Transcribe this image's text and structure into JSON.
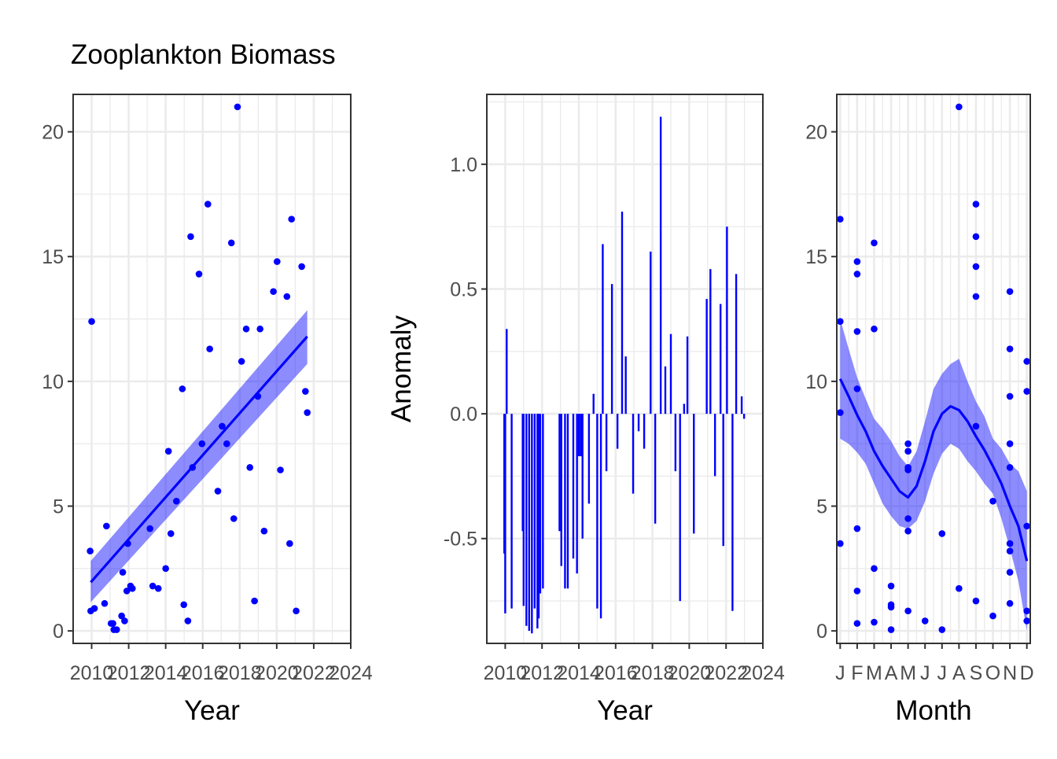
{
  "title": "Zooplankton Biomass",
  "colors": {
    "accent": "#0000ff",
    "ribbon": "#0000ff",
    "grid": "#ebebeb",
    "panel_border": "#333333"
  },
  "chart_data": [
    {
      "type": "scatter",
      "xlabel": "Year",
      "ylabel": "",
      "xlim": [
        2009.0,
        2024.0
      ],
      "ylim": [
        -0.5,
        21.5
      ],
      "xticks": [
        2010,
        2012,
        2014,
        2016,
        2018,
        2020,
        2022,
        2024
      ],
      "yticks": [
        0,
        5,
        10,
        15,
        20
      ],
      "grid": true,
      "points": [
        [
          2009.92,
          3.2
        ],
        [
          2009.95,
          0.8
        ],
        [
          2010.0,
          12.4
        ],
        [
          2010.15,
          0.9
        ],
        [
          2010.7,
          1.1
        ],
        [
          2010.8,
          4.2
        ],
        [
          2011.05,
          0.3
        ],
        [
          2011.15,
          0.3
        ],
        [
          2011.2,
          0.05
        ],
        [
          2011.35,
          0.05
        ],
        [
          2011.62,
          0.6
        ],
        [
          2011.68,
          2.35
        ],
        [
          2011.78,
          0.4
        ],
        [
          2011.9,
          1.6
        ],
        [
          2011.95,
          3.5
        ],
        [
          2012.1,
          1.8
        ],
        [
          2012.2,
          1.7
        ],
        [
          2013.15,
          4.1
        ],
        [
          2013.3,
          1.8
        ],
        [
          2013.6,
          1.7
        ],
        [
          2014.0,
          2.5
        ],
        [
          2014.15,
          7.2
        ],
        [
          2014.28,
          3.9
        ],
        [
          2014.58,
          5.2
        ],
        [
          2014.9,
          9.7
        ],
        [
          2014.98,
          1.05
        ],
        [
          2015.2,
          0.4
        ],
        [
          2015.35,
          15.8
        ],
        [
          2015.45,
          6.55
        ],
        [
          2015.8,
          14.3
        ],
        [
          2015.96,
          7.5
        ],
        [
          2016.28,
          17.1
        ],
        [
          2016.38,
          11.3
        ],
        [
          2016.82,
          5.6
        ],
        [
          2017.05,
          8.2
        ],
        [
          2017.3,
          7.5
        ],
        [
          2017.55,
          15.55
        ],
        [
          2017.68,
          4.5
        ],
        [
          2017.88,
          21.0
        ],
        [
          2018.1,
          10.8
        ],
        [
          2018.35,
          12.1
        ],
        [
          2018.55,
          6.55
        ],
        [
          2018.8,
          1.2
        ],
        [
          2018.98,
          9.4
        ],
        [
          2019.1,
          12.1
        ],
        [
          2019.32,
          4.0
        ],
        [
          2019.82,
          13.6
        ],
        [
          2020.02,
          14.8
        ],
        [
          2020.2,
          6.45
        ],
        [
          2020.55,
          13.4
        ],
        [
          2020.7,
          3.5
        ],
        [
          2020.8,
          16.5
        ],
        [
          2021.05,
          0.8
        ],
        [
          2021.35,
          14.6
        ],
        [
          2021.55,
          9.6
        ],
        [
          2021.65,
          8.75
        ]
      ],
      "trend": {
        "method": "lm",
        "x": [
          2009.95,
          2021.65
        ],
        "y": [
          1.95,
          11.8
        ],
        "ci_lower": [
          1.15,
          10.7
        ],
        "ci_upper": [
          2.8,
          12.85
        ]
      }
    },
    {
      "type": "bar",
      "xlabel": "Year",
      "ylabel": "Anomaly",
      "xlim": [
        2009.0,
        2024.0
      ],
      "ylim": [
        -0.92,
        1.28
      ],
      "xticks": [
        2010,
        2012,
        2014,
        2016,
        2018,
        2020,
        2022,
        2024
      ],
      "yticks": [
        -0.5,
        0.0,
        0.5,
        1.0
      ],
      "grid": true,
      "bars": [
        [
          2009.95,
          -0.56
        ],
        [
          2010.0,
          -0.8
        ],
        [
          2010.08,
          0.34
        ],
        [
          2010.35,
          -0.78
        ],
        [
          2010.95,
          -0.47
        ],
        [
          2011.0,
          -0.77
        ],
        [
          2011.15,
          -0.85
        ],
        [
          2011.3,
          -0.87
        ],
        [
          2011.45,
          -0.88
        ],
        [
          2011.6,
          -0.78
        ],
        [
          2011.75,
          -0.86
        ],
        [
          2011.82,
          -0.82
        ],
        [
          2011.9,
          -0.72
        ],
        [
          2012.05,
          -0.7
        ],
        [
          2012.95,
          -0.47
        ],
        [
          2013.05,
          -0.61
        ],
        [
          2013.25,
          -0.7
        ],
        [
          2013.4,
          -0.7
        ],
        [
          2013.7,
          -0.58
        ],
        [
          2013.9,
          -0.64
        ],
        [
          2014.0,
          -0.17
        ],
        [
          2014.1,
          -0.17
        ],
        [
          2014.2,
          -0.5
        ],
        [
          2014.55,
          -0.36
        ],
        [
          2014.8,
          0.08
        ],
        [
          2015.0,
          -0.78
        ],
        [
          2015.2,
          -0.82
        ],
        [
          2015.3,
          0.68
        ],
        [
          2015.5,
          -0.23
        ],
        [
          2015.8,
          0.52
        ],
        [
          2016.1,
          -0.14
        ],
        [
          2016.35,
          0.81
        ],
        [
          2016.55,
          0.23
        ],
        [
          2016.95,
          -0.32
        ],
        [
          2017.25,
          -0.07
        ],
        [
          2017.55,
          -0.14
        ],
        [
          2017.9,
          0.65
        ],
        [
          2018.15,
          -0.44
        ],
        [
          2018.45,
          1.19
        ],
        [
          2018.7,
          0.19
        ],
        [
          2019.0,
          0.32
        ],
        [
          2019.25,
          -0.23
        ],
        [
          2019.5,
          -0.75
        ],
        [
          2019.72,
          0.04
        ],
        [
          2019.9,
          0.31
        ],
        [
          2020.25,
          -0.48
        ],
        [
          2020.95,
          0.46
        ],
        [
          2021.15,
          0.58
        ],
        [
          2021.4,
          -0.25
        ],
        [
          2021.7,
          0.44
        ],
        [
          2021.85,
          -0.53
        ],
        [
          2022.05,
          0.75
        ],
        [
          2022.35,
          -0.79
        ],
        [
          2022.55,
          0.56
        ],
        [
          2022.85,
          0.07
        ],
        [
          2022.98,
          -0.02
        ]
      ]
    },
    {
      "type": "scatter",
      "xlabel": "Month",
      "ylabel": "",
      "xlim": [
        0.8,
        12.2
      ],
      "ylim": [
        -0.5,
        21.5
      ],
      "xticks": [
        1,
        2,
        3,
        4,
        5,
        6,
        7,
        8,
        9,
        10,
        11,
        12
      ],
      "xticklabels": [
        "J",
        "F",
        "M",
        "A",
        "M",
        "J",
        "J",
        "A",
        "S",
        "O",
        "N",
        "D"
      ],
      "yticks": [
        0,
        5,
        10,
        15,
        20
      ],
      "grid": true,
      "points": [
        [
          1,
          16.5
        ],
        [
          1,
          12.4
        ],
        [
          1,
          8.75
        ],
        [
          1,
          3.5
        ],
        [
          2,
          14.8
        ],
        [
          2,
          14.3
        ],
        [
          2,
          12.0
        ],
        [
          2,
          9.7
        ],
        [
          2,
          4.1
        ],
        [
          2,
          1.6
        ],
        [
          2,
          0.3
        ],
        [
          3,
          15.55
        ],
        [
          3,
          12.1
        ],
        [
          3,
          2.5
        ],
        [
          3,
          0.35
        ],
        [
          4,
          1.8
        ],
        [
          4,
          1.05
        ],
        [
          4,
          0.95
        ],
        [
          4,
          0.05
        ],
        [
          5,
          7.5
        ],
        [
          5,
          7.2
        ],
        [
          5,
          6.55
        ],
        [
          5,
          6.45
        ],
        [
          5,
          4.5
        ],
        [
          5,
          4.0
        ],
        [
          5,
          0.8
        ],
        [
          6,
          0.4
        ],
        [
          7,
          3.9
        ],
        [
          7,
          0.05
        ],
        [
          8,
          21.0
        ],
        [
          8,
          1.7
        ],
        [
          9,
          17.1
        ],
        [
          9,
          15.8
        ],
        [
          9,
          14.6
        ],
        [
          9,
          13.4
        ],
        [
          9,
          8.2
        ],
        [
          9,
          1.2
        ],
        [
          10,
          5.2
        ],
        [
          10,
          0.6
        ],
        [
          11,
          13.6
        ],
        [
          11,
          11.3
        ],
        [
          11,
          9.4
        ],
        [
          11,
          7.5
        ],
        [
          11,
          6.55
        ],
        [
          11,
          3.5
        ],
        [
          11,
          3.2
        ],
        [
          11,
          2.35
        ],
        [
          11,
          1.1
        ],
        [
          12,
          10.8
        ],
        [
          12,
          9.6
        ],
        [
          12,
          4.2
        ],
        [
          12,
          0.8
        ],
        [
          12,
          0.4
        ]
      ],
      "trend": {
        "method": "loess",
        "x": [
          1,
          1.5,
          2,
          2.5,
          3,
          3.5,
          4,
          4.5,
          5,
          5.5,
          6,
          6.5,
          7,
          7.5,
          8,
          8.5,
          9,
          9.5,
          10,
          10.5,
          11,
          11.5,
          12
        ],
        "y": [
          10.1,
          9.4,
          8.65,
          8.0,
          7.2,
          6.6,
          6.1,
          5.6,
          5.35,
          5.8,
          6.8,
          8.0,
          8.7,
          9.0,
          8.85,
          8.4,
          7.8,
          7.25,
          6.6,
          5.9,
          5.0,
          4.2,
          2.8
        ],
        "ci_lower": [
          7.7,
          7.5,
          7.15,
          6.7,
          5.9,
          5.1,
          4.6,
          4.2,
          4.1,
          4.4,
          5.2,
          6.3,
          7.1,
          7.5,
          7.3,
          6.8,
          6.4,
          5.9,
          5.5,
          4.5,
          3.3,
          2.0,
          0.0
        ],
        "ci_upper": [
          12.5,
          11.3,
          10.15,
          9.3,
          8.5,
          8.1,
          7.6,
          7.0,
          6.6,
          7.2,
          8.4,
          9.7,
          10.3,
          10.7,
          10.9,
          10.0,
          9.2,
          8.6,
          7.7,
          7.3,
          6.7,
          6.4,
          5.6
        ]
      }
    }
  ]
}
